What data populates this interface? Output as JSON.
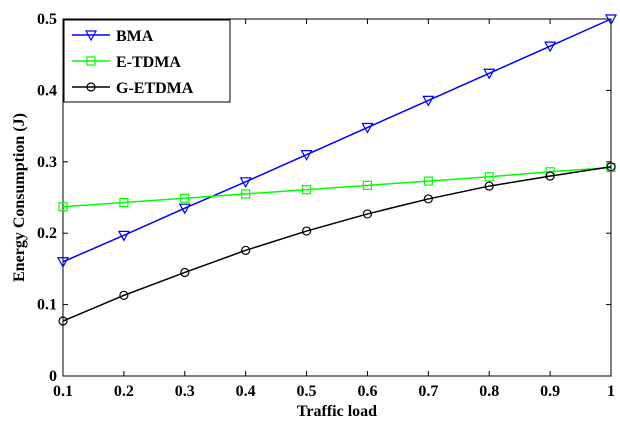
{
  "chart_data": {
    "type": "line",
    "title": "",
    "xlabel": "Traffic load",
    "ylabel": "Energy Consumption (J)",
    "xlim": [
      0.1,
      1
    ],
    "ylim": [
      0,
      0.5
    ],
    "x": [
      0.1,
      0.2,
      0.3,
      0.4,
      0.5,
      0.6,
      0.7,
      0.8,
      0.9,
      1.0
    ],
    "x_ticks": [
      "0.1",
      "0.2",
      "0.3",
      "0.4",
      "0.5",
      "0.6",
      "0.7",
      "0.8",
      "0.9",
      "1"
    ],
    "y_ticks": [
      "0",
      "0.1",
      "0.2",
      "0.3",
      "0.4",
      "0.5"
    ],
    "grid": false,
    "legend_position": "top-left",
    "series": [
      {
        "name": "BMA",
        "color": "#0000ff",
        "marker": "triangle-down",
        "values": [
          0.16,
          0.197,
          0.235,
          0.272,
          0.31,
          0.348,
          0.386,
          0.424,
          0.462,
          0.5
        ]
      },
      {
        "name": "E-TDMA",
        "color": "#00ff00",
        "marker": "square",
        "values": [
          0.237,
          0.243,
          0.249,
          0.255,
          0.261,
          0.267,
          0.273,
          0.279,
          0.286,
          0.292
        ]
      },
      {
        "name": "G-ETDMA",
        "color": "#000000",
        "marker": "circle",
        "values": [
          0.077,
          0.113,
          0.145,
          0.176,
          0.203,
          0.227,
          0.248,
          0.266,
          0.28,
          0.293
        ]
      }
    ]
  }
}
